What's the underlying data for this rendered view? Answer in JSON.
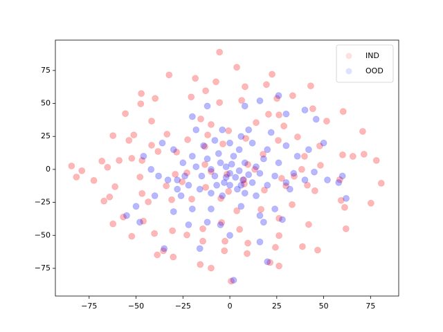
{
  "chart_data": {
    "type": "scatter",
    "xlim": [
      -93,
      90
    ],
    "ylim": [
      -96,
      98
    ],
    "xticks": [
      {
        "value": -75,
        "label": "−75"
      },
      {
        "value": -50,
        "label": "−50"
      },
      {
        "value": -25,
        "label": "−25"
      },
      0,
      25,
      50,
      75
    ],
    "yticks": [
      {
        "value": -75,
        "label": "−75"
      },
      {
        "value": -50,
        "label": "−50"
      },
      {
        "value": -25,
        "label": "−25"
      },
      0,
      25,
      50,
      75
    ],
    "legend": "upper right",
    "series": [
      {
        "name": "IND",
        "color": "red",
        "x": [
          -5.5,
          3.7,
          -32.4,
          22.5,
          -18.4,
          -7.4,
          8.1,
          43.1,
          19.5,
          -47.2,
          -12.9,
          33.5,
          -39.8,
          25.1,
          -20.6,
          -5.5,
          6.3,
          -47.5,
          20.6,
          26.2,
          60.4,
          44.2,
          -55.7,
          14,
          -41.7,
          -15.5,
          51.6,
          28.8,
          -10,
          -0.7,
          -62.3,
          -33.5,
          -11.8,
          -51.2,
          70.8,
          -22.5,
          25.8,
          -53.8,
          8.5,
          36.1,
          47.9,
          -41.7,
          -13.3,
          -38.3,
          -28.4,
          -3.7,
          17.7,
          39.8,
          60.1,
          65.6,
          71.5,
          -52.3,
          -59,
          -46.8,
          78.1,
          -68.2,
          -84.4,
          -13.3,
          9.6,
          48.3,
          -65.2,
          -78.9,
          -29.1,
          -81.8,
          -47.9,
          -1.5,
          27.6,
          34.3,
          -72.5,
          -25.4,
          58.6,
          80.7,
          -61.2,
          -33.9,
          -12.9,
          29.9,
          7.7,
          41.3,
          45.3,
          -46.8,
          -0.7,
          -64.1,
          -67.1,
          -31,
          -20.3,
          59.3,
          75.2,
          -4.8,
          -43.5,
          33.2,
          16.6,
          61.2,
          3.7,
          -56.8,
          -46.1,
          -4.4,
          26.2,
          42,
          -62.3,
          -14.4,
          5.2,
          61.9,
          -30.6,
          -40.2,
          -52.3,
          26.2,
          -22.9,
          -14.4,
          -2.6,
          9.6,
          24.3,
          46.8,
          38.7,
          -2.9,
          -35.4,
          -38.7,
          9.2,
          21.4,
          -15.8,
          26.2,
          -10,
          0.7,
          -30.2,
          7.4,
          -22.9,
          -10,
          38.3,
          13.3,
          18.4
        ],
        "values": [
          88.9,
          77.4,
          71.6,
          72.1,
          69,
          66.4,
          62.7,
          63.3,
          64.3,
          57.5,
          59.6,
          55.9,
          53.8,
          53.8,
          54.9,
          50.7,
          52.3,
          49.7,
          41.8,
          41.3,
          43.9,
          46,
          42.3,
          35.5,
          36.6,
          38.2,
          36.6,
          32.9,
          34,
          29.3,
          25.6,
          26.7,
          26.1,
          26.1,
          28.8,
          22.5,
          22,
          22,
          23.5,
          24.6,
          17.8,
          18.3,
          17.3,
          13.6,
          13.1,
          19.3,
          11.5,
          9.9,
          11,
          9.9,
          11.5,
          8.4,
          6.8,
          6.8,
          6.8,
          6.3,
          2.6,
          3.7,
          3.7,
          3.1,
          1.6,
          -1,
          -3.7,
          -5.8,
          -5.8,
          -3.7,
          -6.8,
          -5.2,
          -8.4,
          -9.4,
          -7.8,
          -10.5,
          -13.1,
          -12.5,
          -13.6,
          -12.5,
          -11,
          -12,
          -16.2,
          -18.3,
          -16.7,
          -20.9,
          -24,
          -23,
          -22.5,
          -23.5,
          -25.6,
          -22,
          -24.6,
          -26.7,
          -30.3,
          -28.8,
          -31.4,
          -36.1,
          -39.2,
          -40.3,
          -37.1,
          -41.8,
          -41.3,
          -45,
          -45.5,
          -45,
          -46.5,
          -48.6,
          -50.7,
          -50.2,
          -49.7,
          -54.4,
          -54.4,
          -55.9,
          -59.1,
          -61.2,
          -58.5,
          -61.7,
          -61.7,
          -64.8,
          -63.8,
          -70.6,
          -72.1,
          -73.2,
          -74.8,
          -84.7,
          -66.4,
          -7.8,
          -2.6,
          -1.6,
          0,
          0,
          -15.7
        ]
      },
      {
        "name": "OOD",
        "color": "blue",
        "x": [
          -5,
          -2,
          0,
          3,
          5,
          7,
          -8,
          -10,
          -12,
          -6,
          2,
          5,
          8,
          10,
          12,
          -3,
          0,
          4,
          -15,
          -18,
          -20,
          14,
          16,
          18,
          20,
          -14,
          -8,
          0,
          6,
          12,
          -22,
          -16,
          -10,
          -4,
          8,
          14,
          20,
          24,
          26,
          -25,
          -28,
          -30,
          10,
          -4,
          -18,
          22,
          30,
          -26,
          -20,
          6,
          -10,
          16,
          24,
          18,
          -30,
          -12,
          -28,
          30,
          34,
          40,
          45,
          36,
          42,
          -38,
          -42,
          -46,
          -36,
          -40,
          -50,
          -55,
          50,
          52,
          58,
          60,
          62,
          -35,
          -20,
          -12,
          8,
          16,
          26,
          30,
          40,
          46,
          -48,
          -22,
          0,
          16,
          28,
          -16,
          2,
          20,
          -5,
          32,
          -33,
          -24,
          -2,
          1,
          -7,
          6
        ],
        "values": [
          5,
          2,
          -3,
          -6,
          -1,
          -8,
          -5,
          0,
          8,
          12,
          10,
          15,
          5,
          -4,
          -10,
          -10,
          -12,
          -15,
          -5,
          2,
          10,
          2,
          -3,
          8,
          15,
          18,
          22,
          20,
          25,
          20,
          -12,
          -15,
          -18,
          -20,
          -18,
          -20,
          -12,
          -5,
          5,
          5,
          -8,
          15,
          30,
          30,
          30,
          28,
          18,
          -20,
          -30,
          -28,
          -30,
          -35,
          -30,
          -40,
          -32,
          -40,
          -15,
          -10,
          -3,
          -8,
          -2,
          10,
          15,
          -5,
          0,
          10,
          20,
          -20,
          -28,
          -35,
          20,
          -8,
          -10,
          -5,
          -22,
          -60,
          40,
          48,
          48,
          52,
          56,
          42,
          45,
          38,
          -40,
          -42,
          -50,
          -55,
          -38,
          -60,
          -84,
          -70,
          -42,
          -15,
          -8,
          -5,
          -6,
          4,
          -12,
          -12
        ]
      }
    ]
  }
}
